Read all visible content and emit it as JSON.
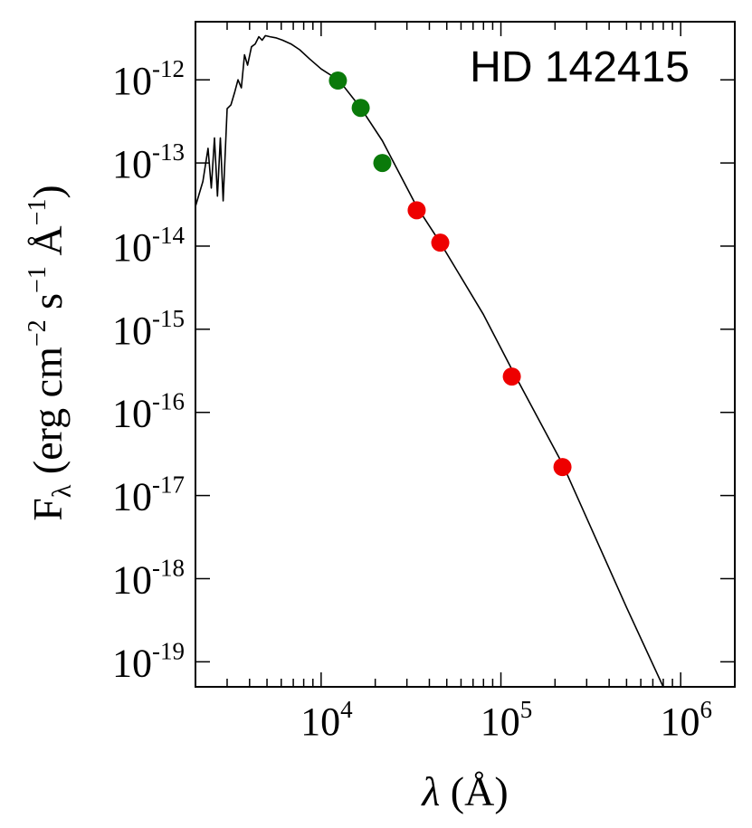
{
  "chart_data": {
    "type": "scatter",
    "annotation": "HD 142415",
    "xlabel": {
      "symbol": "λ",
      "text": " (Å)"
    },
    "ylabel": {
      "symbol": "F",
      "sub": "λ",
      "parts": [
        {
          "text": " (erg cm"
        },
        {
          "sup": "−2"
        },
        {
          "text": " s"
        },
        {
          "sup": "−1"
        },
        {
          "text": " Å"
        },
        {
          "sup": "−1"
        },
        {
          "text": ")"
        }
      ]
    },
    "xscale": "log",
    "yscale": "log",
    "xlim": [
      2000,
      2000000
    ],
    "ylim": [
      5e-20,
      5e-12
    ],
    "x_ticks": [
      {
        "value": 10000,
        "base": "10",
        "exp": "4"
      },
      {
        "value": 100000,
        "base": "10",
        "exp": "5"
      },
      {
        "value": 1000000,
        "base": "10",
        "exp": "6"
      }
    ],
    "y_ticks": [
      {
        "value": 1e-12,
        "base": "10",
        "exp": "-12"
      },
      {
        "value": 1e-13,
        "base": "10",
        "exp": "-13"
      },
      {
        "value": 1e-14,
        "base": "10",
        "exp": "-14"
      },
      {
        "value": 1e-15,
        "base": "10",
        "exp": "-15"
      },
      {
        "value": 1e-16,
        "base": "10",
        "exp": "-16"
      },
      {
        "value": 1e-17,
        "base": "10",
        "exp": "-17"
      },
      {
        "value": 1e-18,
        "base": "10",
        "exp": "-18"
      },
      {
        "value": 1e-19,
        "base": "10",
        "exp": "-19"
      }
    ],
    "series": [
      {
        "kind": "line",
        "color": "#000000",
        "x": [
          2000,
          2200,
          2350,
          2450,
          2550,
          2650,
          2750,
          2850,
          3000,
          3150,
          3300,
          3450,
          3600,
          3750,
          3900,
          4100,
          4300,
          4500,
          4700,
          4900,
          5200,
          5600,
          6100,
          6800,
          7600,
          8600,
          10000,
          12600,
          16600,
          21900,
          34000,
          46000,
          80000,
          115000,
          220000,
          500000,
          800000
        ],
        "y": [
          3e-14,
          6e-14,
          1.5e-13,
          5e-14,
          2e-13,
          4e-14,
          2e-13,
          3.5e-14,
          4.5e-13,
          5e-13,
          7e-13,
          1e-12,
          8e-13,
          2e-12,
          1.5e-12,
          2.5e-12,
          2.7e-12,
          3.3e-12,
          3e-12,
          3.4e-12,
          3.3e-12,
          3.2e-12,
          3e-12,
          2.7e-12,
          2.3e-12,
          1.8e-12,
          1.35e-12,
          9.8e-13,
          4.6e-13,
          1.85e-13,
          3e-14,
          1.1e-14,
          1.5e-15,
          3.3e-16,
          2.4e-17,
          4.5e-19,
          5e-20
        ]
      },
      {
        "kind": "points",
        "color": "#0a7a0a",
        "x": [
          12400,
          16600,
          21900
        ],
        "y": [
          9.8e-13,
          4.6e-13,
          1e-13
        ]
      },
      {
        "kind": "points",
        "color": "#ee0000",
        "x": [
          34000,
          46000,
          115000,
          220000
        ],
        "y": [
          2.7e-14,
          1.1e-14,
          2.7e-16,
          2.2e-17
        ]
      }
    ],
    "grid": false
  }
}
